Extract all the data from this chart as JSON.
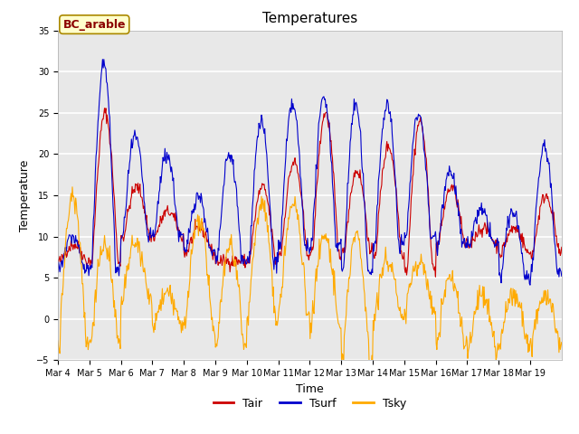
{
  "title": "Temperatures",
  "xlabel": "Time",
  "ylabel": "Temperature",
  "legend_label": "BC_arable",
  "series_labels": [
    "Tair",
    "Tsurf",
    "Tsky"
  ],
  "series_colors": [
    "#cc0000",
    "#0000cc",
    "#ffaa00"
  ],
  "ylim": [
    -5,
    35
  ],
  "yticks": [
    -5,
    0,
    5,
    10,
    15,
    20,
    25,
    30,
    35
  ],
  "xtick_labels": [
    "Mar 4",
    "Mar 5",
    "Mar 6",
    "Mar 7",
    "Mar 8",
    "Mar 9",
    "Mar 10",
    "Mar 11",
    "Mar 12",
    "Mar 13",
    "Mar 14",
    "Mar 15",
    "Mar 16",
    "Mar 17",
    "Mar 18",
    "Mar 19"
  ],
  "n_days": 16,
  "points_per_day": 48,
  "background_color": "#e8e8e8",
  "title_fontsize": 11,
  "axis_label_fontsize": 9,
  "tick_fontsize": 7,
  "legend_fontsize": 9,
  "bc_label_fontsize": 9
}
